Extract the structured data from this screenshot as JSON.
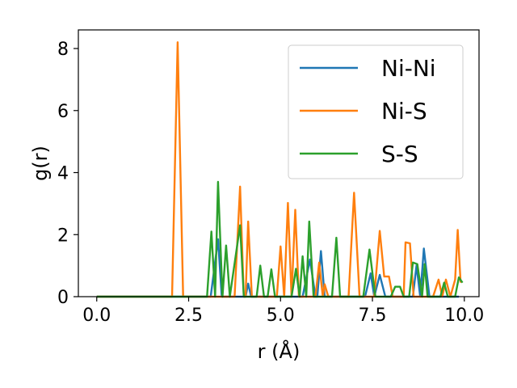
{
  "chart_data": {
    "type": "line",
    "title": "",
    "xlabel": "r (Å)",
    "ylabel": "g(r)",
    "xlim": [
      -0.5,
      10.4
    ],
    "ylim": [
      0,
      8.6
    ],
    "xticks": [
      0.0,
      2.5,
      5.0,
      7.5,
      10.0
    ],
    "xtick_labels": [
      "0.0",
      "2.5",
      "5.0",
      "7.5",
      "10.0"
    ],
    "yticks": [
      0,
      2,
      4,
      6,
      8
    ],
    "ytick_labels": [
      "0",
      "2",
      "4",
      "6",
      "8"
    ],
    "grid": false,
    "legend_position": "top-right",
    "series": [
      {
        "name": "Ni-Ni",
        "color": "#1f77b4",
        "points": [
          [
            0.0,
            0.0
          ],
          [
            3.1,
            0.0
          ],
          [
            3.3,
            1.85
          ],
          [
            3.4,
            0.0
          ],
          [
            4.05,
            0.0
          ],
          [
            4.12,
            0.42
          ],
          [
            4.2,
            0.0
          ],
          [
            5.6,
            0.0
          ],
          [
            5.8,
            1.2
          ],
          [
            5.95,
            0.0
          ],
          [
            6.0,
            0.0
          ],
          [
            6.1,
            1.47
          ],
          [
            6.2,
            0.0
          ],
          [
            7.3,
            0.0
          ],
          [
            7.45,
            0.75
          ],
          [
            7.55,
            0.0
          ],
          [
            7.7,
            0.7
          ],
          [
            7.85,
            0.0
          ],
          [
            8.6,
            0.0
          ],
          [
            8.7,
            1.0
          ],
          [
            8.8,
            0.0
          ],
          [
            8.9,
            1.55
          ],
          [
            9.05,
            0.0
          ],
          [
            9.85,
            0.0
          ]
        ]
      },
      {
        "name": "Ni-S",
        "color": "#ff7f0e",
        "points": [
          [
            0.0,
            0.0
          ],
          [
            2.05,
            0.0
          ],
          [
            2.2,
            8.2
          ],
          [
            2.35,
            0.0
          ],
          [
            3.75,
            0.0
          ],
          [
            3.9,
            3.55
          ],
          [
            4.0,
            0.0
          ],
          [
            4.05,
            0.0
          ],
          [
            4.12,
            2.42
          ],
          [
            4.22,
            0.0
          ],
          [
            4.9,
            0.0
          ],
          [
            5.0,
            1.62
          ],
          [
            5.1,
            0.0
          ],
          [
            5.2,
            3.02
          ],
          [
            5.3,
            0.0
          ],
          [
            5.4,
            2.8
          ],
          [
            5.5,
            0.0
          ],
          [
            5.95,
            0.0
          ],
          [
            6.05,
            1.1
          ],
          [
            6.15,
            0.0
          ],
          [
            6.2,
            0.4
          ],
          [
            6.3,
            0.0
          ],
          [
            6.85,
            0.0
          ],
          [
            7.0,
            3.35
          ],
          [
            7.15,
            0.0
          ],
          [
            7.55,
            0.0
          ],
          [
            7.7,
            2.12
          ],
          [
            7.82,
            0.65
          ],
          [
            7.95,
            0.65
          ],
          [
            8.05,
            0.0
          ],
          [
            8.35,
            0.0
          ],
          [
            8.4,
            1.75
          ],
          [
            8.52,
            1.72
          ],
          [
            8.62,
            0.0
          ],
          [
            9.15,
            0.0
          ],
          [
            9.3,
            0.55
          ],
          [
            9.4,
            0.0
          ],
          [
            9.5,
            0.55
          ],
          [
            9.62,
            0.0
          ],
          [
            9.75,
            0.55
          ],
          [
            9.82,
            2.15
          ],
          [
            9.9,
            0.45
          ]
        ]
      },
      {
        "name": "S-S",
        "color": "#2ca02c",
        "points": [
          [
            0.0,
            0.0
          ],
          [
            3.0,
            0.0
          ],
          [
            3.12,
            2.1
          ],
          [
            3.22,
            0.0
          ],
          [
            3.3,
            3.7
          ],
          [
            3.42,
            0.0
          ],
          [
            3.52,
            1.65
          ],
          [
            3.62,
            0.0
          ],
          [
            3.9,
            2.3
          ],
          [
            4.0,
            0.0
          ],
          [
            4.35,
            0.0
          ],
          [
            4.45,
            1.0
          ],
          [
            4.55,
            0.0
          ],
          [
            4.65,
            0.0
          ],
          [
            4.75,
            0.88
          ],
          [
            4.85,
            0.0
          ],
          [
            5.3,
            0.0
          ],
          [
            5.42,
            0.9
          ],
          [
            5.52,
            0.0
          ],
          [
            5.6,
            1.3
          ],
          [
            5.7,
            0.0
          ],
          [
            5.78,
            2.42
          ],
          [
            5.9,
            0.0
          ],
          [
            6.3,
            0.0
          ],
          [
            6.4,
            0.0
          ],
          [
            6.52,
            1.9
          ],
          [
            6.62,
            0.0
          ],
          [
            7.25,
            0.0
          ],
          [
            7.42,
            1.52
          ],
          [
            7.58,
            0.0
          ],
          [
            8.0,
            0.0
          ],
          [
            8.12,
            0.32
          ],
          [
            8.25,
            0.32
          ],
          [
            8.35,
            0.0
          ],
          [
            8.5,
            0.0
          ],
          [
            8.6,
            1.1
          ],
          [
            8.72,
            1.05
          ],
          [
            8.85,
            0.0
          ],
          [
            8.92,
            1.05
          ],
          [
            9.0,
            0.0
          ],
          [
            9.35,
            0.0
          ],
          [
            9.45,
            0.45
          ],
          [
            9.55,
            0.0
          ],
          [
            9.75,
            0.0
          ],
          [
            9.85,
            0.62
          ],
          [
            9.95,
            0.45
          ]
        ]
      }
    ]
  }
}
